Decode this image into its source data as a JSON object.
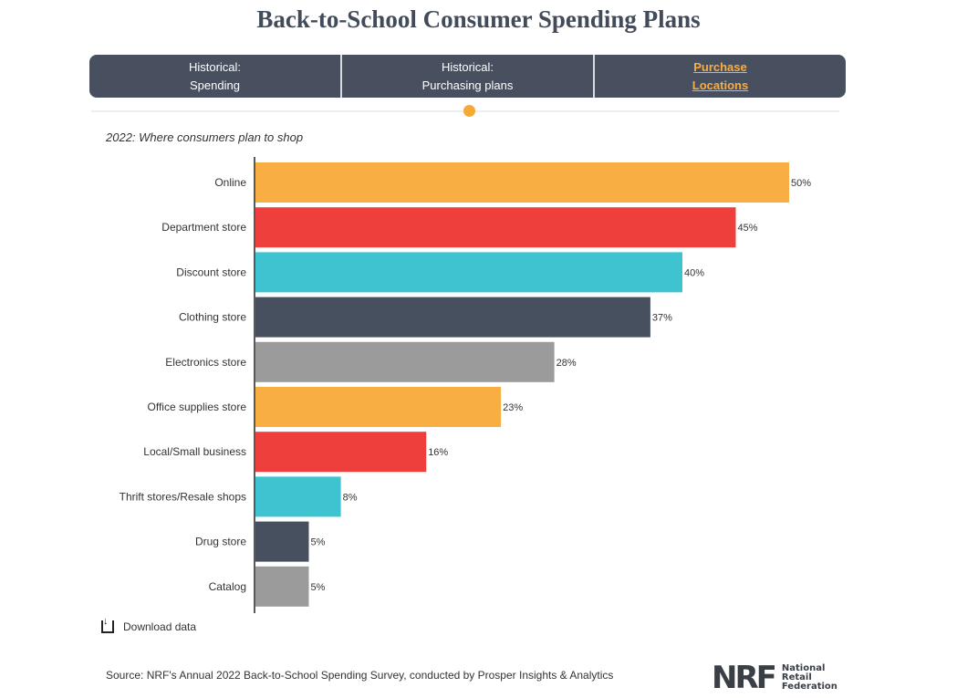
{
  "header": {
    "title": "Back-to-School Consumer Spending Plans"
  },
  "tabs": [
    {
      "line1": "Historical:",
      "line2": "Spending",
      "active": false
    },
    {
      "line1": "Historical:",
      "line2": "Purchasing plans",
      "active": false
    },
    {
      "line1": "Purchase",
      "line2": "Locations",
      "active": true
    }
  ],
  "chart_data": {
    "type": "bar",
    "orientation": "horizontal",
    "title": "2022: Where consumers plan to shop",
    "xlabel": "",
    "ylabel": "",
    "xlim": [
      0,
      50
    ],
    "grid": false,
    "categories": [
      "Online",
      "Department store",
      "Discount store",
      "Clothing store",
      "Electronics store",
      "Office supplies store",
      "Local/Small business",
      "Thrift stores/Resale shops",
      "Drug store",
      "Catalog"
    ],
    "values": [
      50,
      45,
      40,
      37,
      28,
      23,
      16,
      8,
      5,
      5
    ],
    "value_labels": [
      "50%",
      "45%",
      "40%",
      "37%",
      "28%",
      "23%",
      "16%",
      "8%",
      "5%",
      "5%"
    ],
    "colors": [
      "#f9ae43",
      "#ee3f3c",
      "#3ec3d0",
      "#47505f",
      "#9b9b9b",
      "#f9ae43",
      "#ee3f3c",
      "#3ec3d0",
      "#47505f",
      "#9b9b9b"
    ]
  },
  "download": {
    "label": "Download data",
    "icon": "download-icon"
  },
  "footer": {
    "source": "Source: NRF's Annual 2022 Back-to-School Spending Survey, conducted by Prosper Insights & Analytics",
    "logo_mark": "NRF",
    "logo_line1": "National",
    "logo_line2": "Retail",
    "logo_line3": "Federation"
  }
}
